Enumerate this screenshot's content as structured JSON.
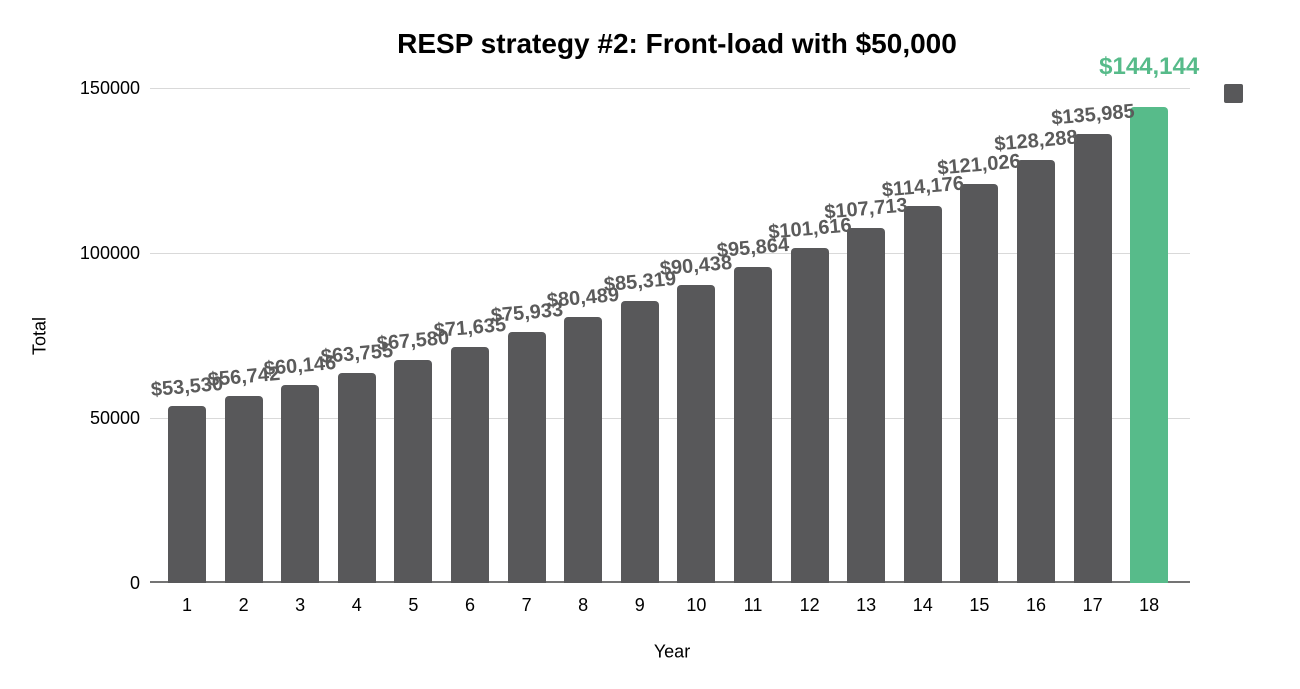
{
  "chart_data": {
    "type": "bar",
    "title": "RESP strategy #2: Front-load with $50,000",
    "xlabel": "Year",
    "ylabel": "Total",
    "categories": [
      "1",
      "2",
      "3",
      "4",
      "5",
      "6",
      "7",
      "8",
      "9",
      "10",
      "11",
      "12",
      "13",
      "14",
      "15",
      "16",
      "17",
      "18"
    ],
    "values": [
      53530,
      56742,
      60146,
      63755,
      67580,
      71635,
      75933,
      80489,
      85319,
      90438,
      95864,
      101616,
      107713,
      114176,
      121026,
      128288,
      135985,
      144144
    ],
    "value_labels": [
      "$53,530",
      "$56,742",
      "$60,146",
      "$63,755",
      "$67,580",
      "$71,635",
      "$75,933",
      "$80,489",
      "$85,319",
      "$90,438",
      "$95,864",
      "$101,616",
      "$107,713",
      "$114,176",
      "$121,026",
      "$128,288",
      "$135,985",
      "$144,144"
    ],
    "highlight_index": 17,
    "ylim": [
      0,
      150000
    ],
    "yticks": [
      0,
      50000,
      100000,
      150000
    ],
    "ytick_labels": [
      "0",
      "50000",
      "100000",
      "150000"
    ],
    "grid": true,
    "legend_position": "top-right",
    "colors": {
      "bar": "#58585a",
      "highlight_bar": "#57bb8a",
      "value_label": "#5b5b5b",
      "highlight_label": "#57bb8a",
      "gridline": "#d9d9d9",
      "baseline": "#747474",
      "title": "#000000",
      "tick_label": "#000000",
      "legend_marker": "#58585a"
    }
  }
}
